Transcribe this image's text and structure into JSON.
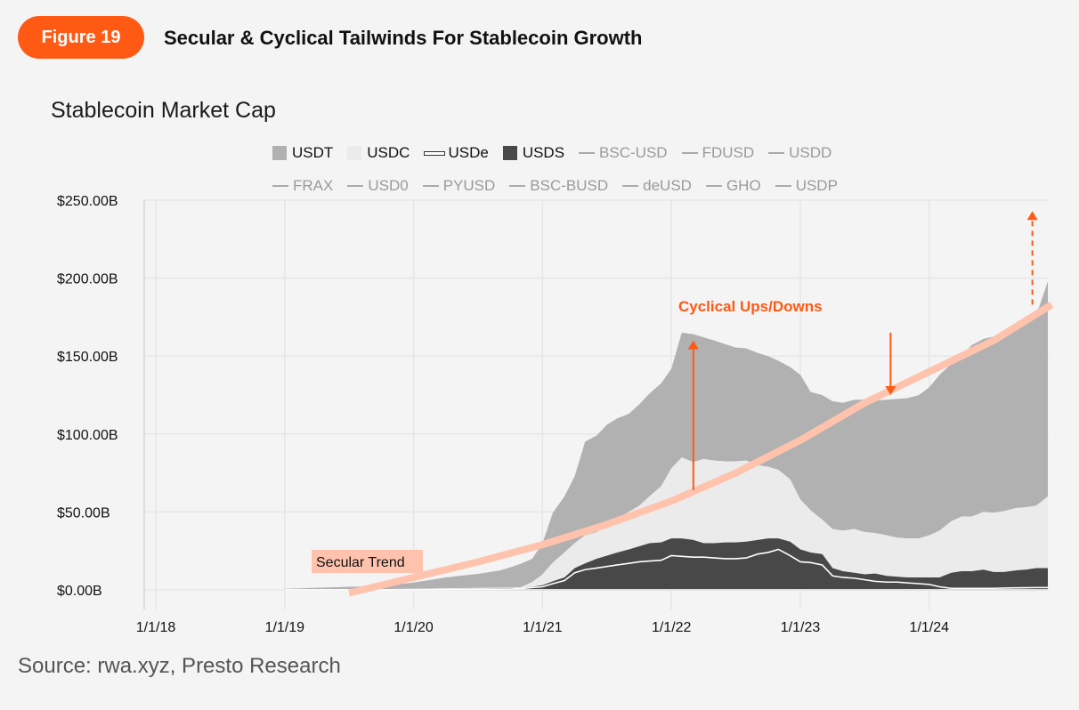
{
  "header": {
    "figure_label": "Figure 19",
    "title": "Secular & Cyclical Tailwinds For Stablecoin Growth"
  },
  "colors": {
    "accent": "#ff5a14",
    "trend": "#ffc3ad",
    "usdt": "#b1b1b1",
    "usdc": "#ebebeb",
    "usds": "#484848",
    "usde": "#ffffff",
    "grid": "#e6e6e6",
    "background": "#f4f4f4"
  },
  "source": "Source: rwa.xyz, Presto Research",
  "chart_data": {
    "type": "area",
    "title": "Stablecoin Market Cap",
    "stacking": "stacked",
    "xlabel": "",
    "ylabel": "",
    "ylim": [
      0,
      250
    ],
    "y_unit": "USD billions",
    "yticks": [
      0,
      50,
      100,
      150,
      200,
      250
    ],
    "ytick_labels": [
      "$0.00B",
      "$50.00B",
      "$100.00B",
      "$150.00B",
      "$200.00B",
      "$250.00B"
    ],
    "xlim": [
      2017.9,
      2025.0
    ],
    "xticks": [
      2018,
      2019,
      2020,
      2021,
      2022,
      2023,
      2024
    ],
    "xtick_labels": [
      "1/1/18",
      "1/1/19",
      "1/1/20",
      "1/1/21",
      "1/1/22",
      "1/1/23",
      "1/1/24"
    ],
    "grid": true,
    "legend_position": "top",
    "legend": [
      {
        "name": "USDT",
        "style": "box",
        "active": true
      },
      {
        "name": "USDC",
        "style": "box",
        "active": true
      },
      {
        "name": "USDe",
        "style": "double-line",
        "active": true
      },
      {
        "name": "USDS",
        "style": "box",
        "active": true
      },
      {
        "name": "BSC-USD",
        "style": "line",
        "active": false
      },
      {
        "name": "FDUSD",
        "style": "line",
        "active": false
      },
      {
        "name": "USDD",
        "style": "line",
        "active": false
      },
      {
        "name": "FRAX",
        "style": "line",
        "active": false
      },
      {
        "name": "USD0",
        "style": "line",
        "active": false
      },
      {
        "name": "PYUSD",
        "style": "line",
        "active": false
      },
      {
        "name": "BSC-BUSD",
        "style": "line",
        "active": false
      },
      {
        "name": "deUSD",
        "style": "line",
        "active": false
      },
      {
        "name": "GHO",
        "style": "line",
        "active": false
      },
      {
        "name": "USDP",
        "style": "line",
        "active": false
      }
    ],
    "x": [
      2019.0,
      2019.5,
      2019.75,
      2020.0,
      2020.25,
      2020.5,
      2020.67,
      2020.75,
      2020.83,
      2020.92,
      2021.0,
      2021.08,
      2021.17,
      2021.25,
      2021.33,
      2021.42,
      2021.5,
      2021.58,
      2021.67,
      2021.75,
      2021.83,
      2021.92,
      2022.0,
      2022.08,
      2022.17,
      2022.25,
      2022.33,
      2022.42,
      2022.5,
      2022.58,
      2022.67,
      2022.75,
      2022.83,
      2022.92,
      2023.0,
      2023.08,
      2023.17,
      2023.25,
      2023.33,
      2023.42,
      2023.5,
      2023.58,
      2023.67,
      2023.75,
      2023.83,
      2023.92,
      2024.0,
      2024.08,
      2024.17,
      2024.25,
      2024.33,
      2024.42,
      2024.5,
      2024.58,
      2024.67,
      2024.75,
      2024.83,
      2024.92
    ],
    "series": [
      {
        "name": "USDS",
        "values": [
          0,
          0,
          0,
          0.2,
          0.5,
          0.8,
          1.0,
          1.0,
          1.2,
          2.0,
          3.0,
          5.5,
          8.0,
          14.0,
          17.0,
          20.0,
          22.0,
          24.0,
          26.0,
          28.0,
          30.0,
          30.5,
          33.0,
          33.0,
          32.0,
          30.0,
          30.0,
          30.5,
          30.5,
          31.0,
          32.0,
          33.0,
          33.0,
          31.0,
          26.0,
          24.0,
          23.0,
          14.0,
          12.0,
          11.0,
          10.0,
          10.5,
          9.0,
          8.5,
          8.0,
          8.0,
          8.0,
          8.0,
          11.0,
          12.0,
          12.0,
          13.0,
          11.5,
          11.5,
          12.5,
          13.0,
          14.0,
          14.0
        ]
      },
      {
        "name": "USDC",
        "values": [
          0.2,
          0.5,
          0.5,
          0.5,
          0.5,
          0.5,
          0.5,
          0.5,
          0.5,
          3.0,
          7.0,
          12.0,
          16.0,
          16.0,
          18.0,
          17.0,
          20.0,
          22.0,
          24.0,
          26.0,
          30.0,
          36.0,
          45.0,
          52.0,
          50.0,
          54.0,
          53.0,
          52.0,
          52.0,
          52.0,
          48.0,
          46.0,
          44.0,
          40.0,
          32.0,
          27.0,
          22.0,
          25.0,
          26.0,
          28.0,
          27.0,
          26.0,
          26.0,
          25.0,
          25.0,
          25.0,
          27.0,
          30.0,
          33.0,
          35.0,
          35.0,
          37.0,
          38.0,
          39.0,
          40.0,
          40.0,
          40.0,
          46.0
        ]
      },
      {
        "name": "USDT",
        "values": [
          0.5,
          1.5,
          2.0,
          4.0,
          7.0,
          9.0,
          11.0,
          13.0,
          15.0,
          15.0,
          20.0,
          32.0,
          36.0,
          43.0,
          60.0,
          62.0,
          64.0,
          64.0,
          63.0,
          65.0,
          66.0,
          66.0,
          64.0,
          80.0,
          82.0,
          78.0,
          77.0,
          75.0,
          73.0,
          72.0,
          72.0,
          71.0,
          70.0,
          72.0,
          80.0,
          76.0,
          80.0,
          82.0,
          82.0,
          83.0,
          85.0,
          85.0,
          87.0,
          89.0,
          90.0,
          92.0,
          95.0,
          100.0,
          101.0,
          103.0,
          110.0,
          111.0,
          113.0,
          113.0,
          115.0,
          118.0,
          122.0,
          138.0
        ]
      },
      {
        "name": "USDe",
        "style": "line",
        "values": [
          0,
          0,
          0,
          0,
          0.2,
          0.3,
          0.4,
          0.5,
          0.8,
          1.5,
          2.0,
          4.0,
          6.0,
          11.0,
          13.0,
          14.0,
          15.0,
          16.0,
          17.0,
          18.0,
          18.5,
          19.0,
          22.0,
          21.5,
          21.0,
          21.0,
          20.5,
          20.0,
          20.0,
          20.5,
          23.0,
          24.0,
          26.0,
          22.0,
          18.0,
          17.5,
          16.0,
          9.0,
          8.0,
          7.5,
          6.5,
          5.5,
          5.0,
          5.0,
          4.5,
          4.0,
          3.5,
          2.0,
          1.0,
          1.0,
          1.0,
          1.0,
          1.0,
          1.2,
          1.3,
          1.4,
          1.5,
          1.5
        ]
      }
    ],
    "trend_line": {
      "label": "Secular Trend",
      "x": [
        2019.5,
        2020.0,
        2020.5,
        2021.0,
        2021.5,
        2022.0,
        2022.5,
        2023.0,
        2023.5,
        2024.0,
        2024.5,
        2024.95
      ],
      "values": [
        -2,
        8,
        18,
        29,
        42,
        57,
        75,
        96,
        120,
        140,
        160,
        183
      ]
    },
    "annotations": [
      {
        "text": "Cyclical Ups/Downs",
        "type": "label",
        "x": 2022.25,
        "y": 182
      },
      {
        "text": "",
        "type": "arrow-up",
        "x": 2022.17,
        "from": 64,
        "to": 160
      },
      {
        "text": "",
        "type": "arrow-down",
        "x": 2023.7,
        "from": 165,
        "to": 125
      },
      {
        "text": "",
        "type": "arrow-up-dashed",
        "x": 2024.8,
        "from": 183,
        "to": 243
      }
    ]
  }
}
